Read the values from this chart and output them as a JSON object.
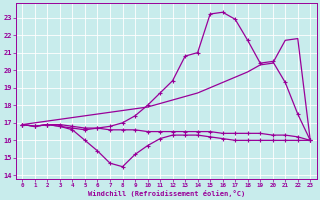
{
  "xlabel": "Windchill (Refroidissement éolien,°C)",
  "bg_color": "#c8ecec",
  "line_color": "#990099",
  "grid_color": "#ffffff",
  "xlim": [
    -0.5,
    23.5
  ],
  "ylim": [
    13.8,
    23.8
  ],
  "yticks": [
    14,
    15,
    16,
    17,
    18,
    19,
    20,
    21,
    22,
    23
  ],
  "xticks": [
    0,
    1,
    2,
    3,
    4,
    5,
    6,
    7,
    8,
    9,
    10,
    11,
    12,
    13,
    14,
    15,
    16,
    17,
    18,
    19,
    20,
    21,
    22,
    23
  ],
  "line_flat_x": [
    0,
    1,
    2,
    3,
    4,
    5,
    6,
    7,
    8,
    9,
    10,
    11,
    12,
    13,
    14,
    15,
    16,
    17,
    18,
    19,
    20,
    21,
    22,
    23
  ],
  "line_flat_y": [
    16.9,
    16.8,
    16.9,
    16.9,
    16.8,
    16.7,
    16.7,
    16.6,
    16.6,
    16.6,
    16.5,
    16.5,
    16.5,
    16.5,
    16.5,
    16.5,
    16.4,
    16.4,
    16.4,
    16.4,
    16.3,
    16.3,
    16.2,
    16.0
  ],
  "line_dip_x": [
    0,
    1,
    2,
    3,
    4,
    5,
    6,
    7,
    8,
    9,
    10,
    11,
    12,
    13,
    14,
    15,
    16,
    17,
    18,
    19,
    20,
    21,
    22,
    23
  ],
  "line_dip_y": [
    16.9,
    16.8,
    16.9,
    16.8,
    16.6,
    16.0,
    15.4,
    14.7,
    14.5,
    15.2,
    15.7,
    16.1,
    16.3,
    16.3,
    16.3,
    16.2,
    16.1,
    16.0,
    16.0,
    16.0,
    16.0,
    16.0,
    16.0,
    16.0
  ],
  "line_peak_x": [
    0,
    1,
    2,
    3,
    4,
    5,
    6,
    7,
    8,
    9,
    10,
    11,
    12,
    13,
    14,
    15,
    16,
    17,
    18,
    19,
    20,
    21,
    22,
    23
  ],
  "line_peak_y": [
    16.9,
    16.8,
    16.9,
    16.8,
    16.7,
    16.6,
    16.7,
    16.8,
    17.0,
    17.4,
    18.0,
    18.7,
    19.4,
    20.8,
    21.0,
    23.2,
    23.3,
    22.9,
    21.7,
    20.4,
    20.5,
    19.3,
    17.5,
    16.0
  ],
  "line_diag_x": [
    0,
    1,
    2,
    3,
    4,
    5,
    6,
    7,
    8,
    9,
    10,
    11,
    12,
    13,
    14,
    15,
    16,
    17,
    18,
    19,
    20,
    21,
    22,
    23
  ],
  "line_diag_y": [
    16.9,
    17.0,
    17.1,
    17.2,
    17.3,
    17.4,
    17.5,
    17.6,
    17.7,
    17.8,
    17.9,
    18.1,
    18.3,
    18.5,
    18.7,
    19.0,
    19.3,
    19.6,
    19.9,
    20.3,
    20.4,
    21.7,
    21.8,
    16.0
  ]
}
